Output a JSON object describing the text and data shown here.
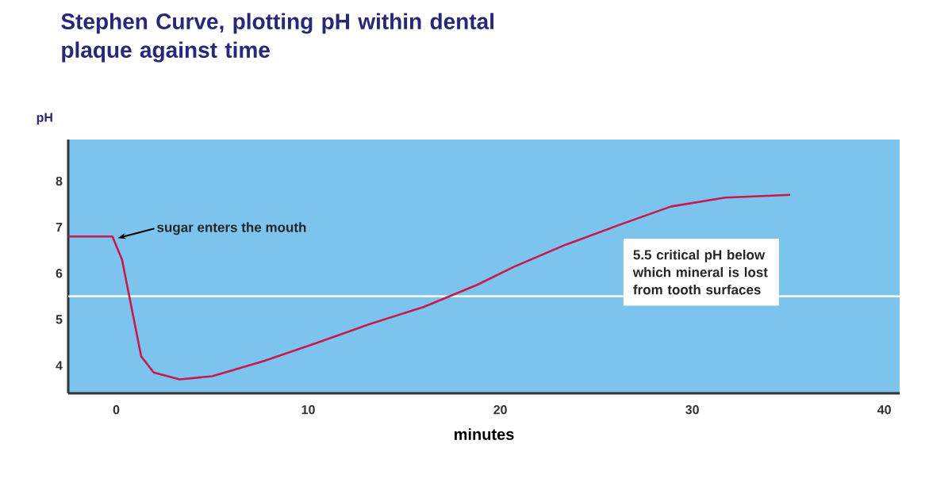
{
  "chart_data": {
    "type": "line",
    "title": "Stephen Curve, plotting pH within dental plaque against time",
    "xlabel": "minutes",
    "ylabel": "pH",
    "x": [
      -2.5,
      -0.2,
      0.3,
      1.3,
      1.95,
      3.3,
      5,
      7.7,
      10.5,
      13.2,
      16,
      18.8,
      20.7,
      23.4,
      26.2,
      28.9,
      31.7,
      35.1
    ],
    "series": [
      {
        "color": "#c8194a",
        "values": [
          6.8,
          6.8,
          6.3,
          4.2,
          3.85,
          3.7,
          3.77,
          4.1,
          4.5,
          4.9,
          5.27,
          5.75,
          6.14,
          6.62,
          7.05,
          7.45,
          7.64,
          7.7
        ]
      }
    ],
    "xlim": [
      -2.5,
      40.8
    ],
    "ylim": [
      3.4,
      8.9
    ],
    "xticks": [
      0,
      10,
      20,
      30,
      40
    ],
    "yticks": [
      4,
      5,
      6,
      7,
      8
    ],
    "ref_lines": [
      {
        "axis": "y",
        "value": 5.5,
        "label": "5.5 critical pH below which mineral is lost from tooth surfaces",
        "color": "#ffffff"
      }
    ],
    "annotations": [
      {
        "text": "sugar enters the mouth",
        "x": 0,
        "y": 6.8
      }
    ],
    "marker": "none",
    "line_style": "solid"
  }
}
